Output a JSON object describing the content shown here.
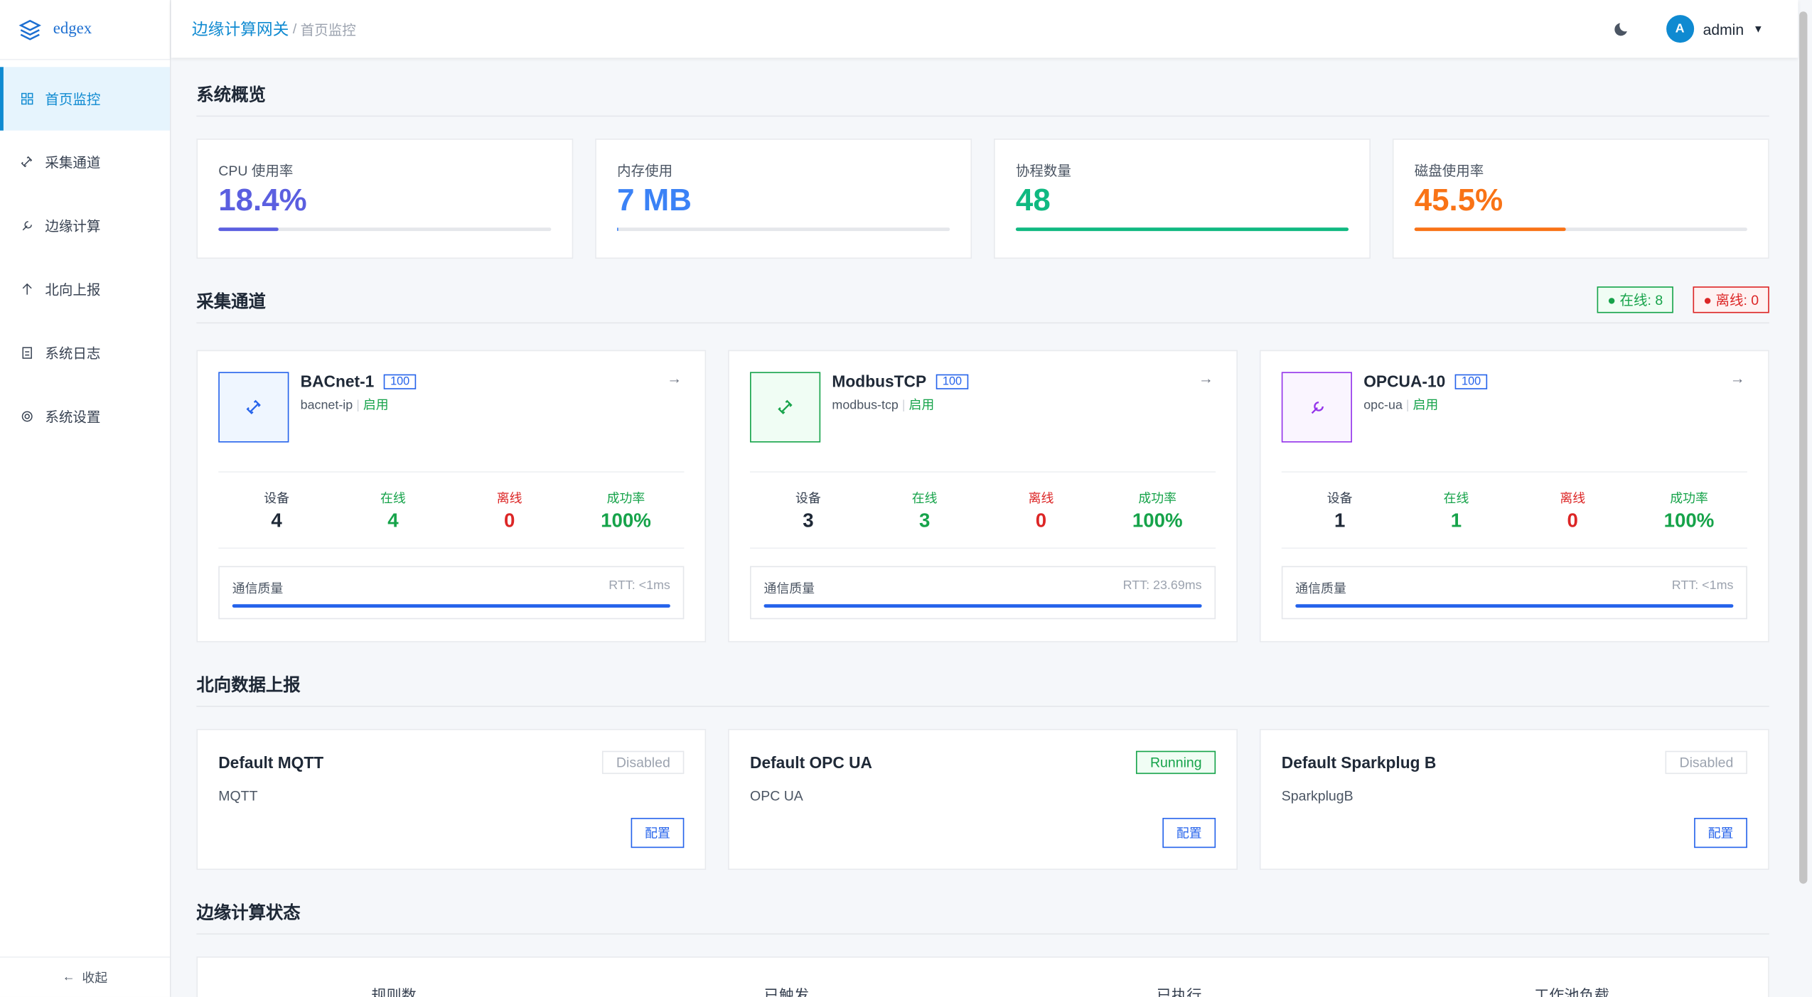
{
  "brand": "edgex",
  "nav": [
    "首页监控",
    "采集通道",
    "边缘计算",
    "北向上报",
    "系统日志",
    "系统设置"
  ],
  "collapse": "收起",
  "breadcrumb": [
    "边缘计算网关",
    "首页监控"
  ],
  "user": {
    "avatar": "A",
    "name": "admin"
  },
  "overview": {
    "title": "系统概览",
    "cards": [
      {
        "label": "CPU 使用率",
        "value": "18.4%"
      },
      {
        "label": "内存使用",
        "value": "7 MB"
      },
      {
        "label": "协程数量",
        "value": "48"
      },
      {
        "label": "磁盘使用率",
        "value": "45.5%"
      }
    ]
  },
  "channels": {
    "title": "采集通道",
    "online": "在线: 8",
    "offline": "离线: 0",
    "items": [
      {
        "name": "BACnet-1",
        "badge": "100",
        "protocol": "bacnet-ip",
        "status": "启用",
        "stats": [
          {
            "label": "设备",
            "value": "4"
          },
          {
            "label": "在线",
            "value": "4"
          },
          {
            "label": "离线",
            "value": "0"
          },
          {
            "label": "成功率",
            "value": "100%"
          }
        ],
        "quality": "通信质量",
        "rtt": "RTT: <1ms"
      },
      {
        "name": "ModbusTCP",
        "badge": "100",
        "protocol": "modbus-tcp",
        "status": "启用",
        "stats": [
          {
            "label": "设备",
            "value": "3"
          },
          {
            "label": "在线",
            "value": "3"
          },
          {
            "label": "离线",
            "value": "0"
          },
          {
            "label": "成功率",
            "value": "100%"
          }
        ],
        "quality": "通信质量",
        "rtt": "RTT: 23.69ms"
      },
      {
        "name": "OPCUA-10",
        "badge": "100",
        "protocol": "opc-ua",
        "status": "启用",
        "stats": [
          {
            "label": "设备",
            "value": "1"
          },
          {
            "label": "在线",
            "value": "1"
          },
          {
            "label": "离线",
            "value": "0"
          },
          {
            "label": "成功率",
            "value": "100%"
          }
        ],
        "quality": "通信质量",
        "rtt": "RTT: <1ms"
      }
    ]
  },
  "northbound": {
    "title": "北向数据上报",
    "items": [
      {
        "name": "Default MQTT",
        "state": "Disabled",
        "protocol": "MQTT",
        "action": "配置"
      },
      {
        "name": "Default OPC UA",
        "state": "Running",
        "protocol": "OPC UA",
        "action": "配置"
      },
      {
        "name": "Default Sparkplug B",
        "state": "Disabled",
        "protocol": "SparkplugB",
        "action": "配置"
      }
    ]
  },
  "edge": {
    "title": "边缘计算状态",
    "labels": [
      "规则数",
      "已触发",
      "已执行",
      "工作池负载"
    ]
  }
}
